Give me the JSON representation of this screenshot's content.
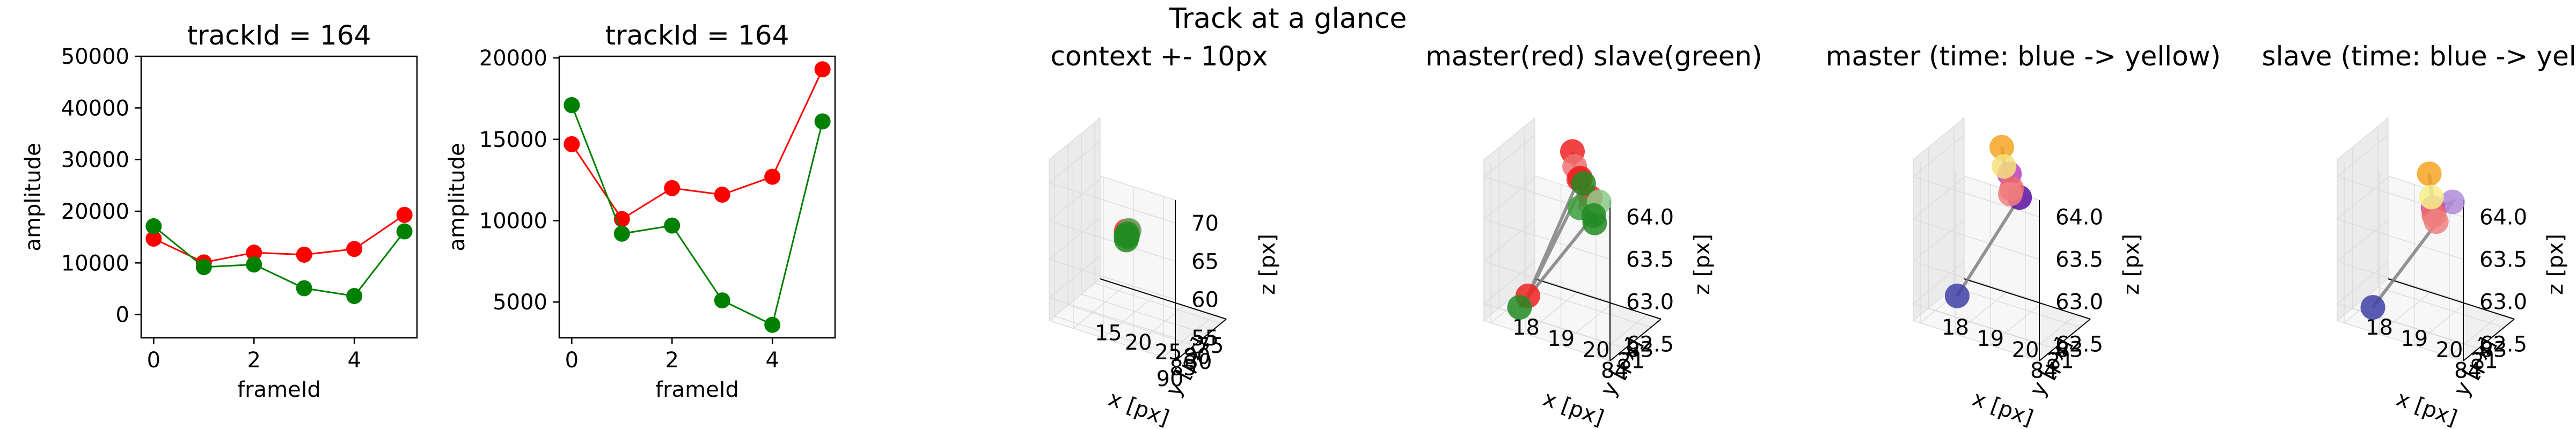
{
  "figure": {
    "suptitle": "Track at a glance"
  },
  "chart_data": [
    {
      "type": "line",
      "title": "trackId = 164",
      "xlabel": "frameId",
      "ylabel": "amplitude",
      "x": [
        0,
        1,
        2,
        3,
        4,
        5
      ],
      "xticks": [
        0,
        2,
        4
      ],
      "yticks": [
        0,
        10000,
        20000,
        30000,
        40000,
        50000
      ],
      "xlim": [
        -0.25,
        5.25
      ],
      "ylim": [
        -4500,
        50000
      ],
      "series": [
        {
          "color": "#ff0000",
          "values": [
            14700,
            10100,
            12000,
            11600,
            12700,
            19300
          ]
        },
        {
          "color": "#008000",
          "values": [
            17100,
            9200,
            9700,
            5100,
            3600,
            16100
          ]
        }
      ]
    },
    {
      "type": "line",
      "title": "trackId = 164",
      "xlabel": "frameId",
      "ylabel": "amplitude",
      "x": [
        0,
        1,
        2,
        3,
        4,
        5
      ],
      "xticks": [
        0,
        2,
        4
      ],
      "yticks": [
        5000,
        10000,
        15000,
        20000
      ],
      "xlim": [
        -0.25,
        5.25
      ],
      "ylim": [
        2800,
        20100
      ],
      "series": [
        {
          "color": "#ff0000",
          "values": [
            14700,
            10100,
            12000,
            11600,
            12700,
            19300
          ]
        },
        {
          "color": "#008000",
          "values": [
            17100,
            9200,
            9700,
            5100,
            3600,
            16100
          ]
        }
      ]
    },
    {
      "type": "scatter3d",
      "title": "context +- 10px",
      "xlabel": "x [px]",
      "ylabel": "y [px]",
      "zlabel": "z [px]",
      "xlim": [
        73,
        92
      ],
      "ylim": [
        11,
        32
      ],
      "zlim": [
        52,
        73
      ],
      "xticks": [
        75,
        80,
        85,
        90
      ],
      "yticks": [
        15,
        20,
        25,
        30
      ],
      "zticks": [
        55,
        60,
        65,
        70
      ],
      "xtick_labels": [
        "75",
        "80",
        "85",
        "90"
      ],
      "ytick_labels": [
        "15",
        "20",
        "25",
        "30"
      ],
      "ztick_labels": [
        "55",
        "60",
        "65",
        "70"
      ],
      "connect": false,
      "points": [
        {
          "x": 83.4,
          "y": 20.0,
          "z": 63.5,
          "color": "#ff3333"
        },
        {
          "x": 83.6,
          "y": 20.3,
          "z": 63.6,
          "color": "#ff3333"
        },
        {
          "x": 83.8,
          "y": 20.5,
          "z": 63.7,
          "color": "#ff3333"
        },
        {
          "x": 83.7,
          "y": 20.6,
          "z": 63.8,
          "color": "#66aa66"
        },
        {
          "x": 83.5,
          "y": 20.2,
          "z": 63.2,
          "color": "#228b22"
        },
        {
          "x": 83.3,
          "y": 19.9,
          "z": 62.8,
          "color": "#228b22"
        },
        {
          "x": 83.6,
          "y": 20.1,
          "z": 62.4,
          "color": "#228b22"
        },
        {
          "x": 83.9,
          "y": 20.4,
          "z": 63.0,
          "color": "#228b22"
        }
      ]
    },
    {
      "type": "scatter3d",
      "title": "master(red) slave(green)",
      "xlabel": "x [px]",
      "ylabel": "y [px]",
      "zlabel": "z [px]",
      "xlim": [
        82.6,
        84.6
      ],
      "ylim": [
        17.8,
        21.4
      ],
      "zlim": [
        62.3,
        64.2
      ],
      "xticks": [
        83,
        84
      ],
      "yticks": [
        18,
        19,
        20,
        21
      ],
      "zticks": [
        62.5,
        63.0,
        63.5,
        64.0
      ],
      "xtick_labels": [
        "83",
        "84"
      ],
      "ytick_labels": [
        "18",
        "19",
        "20",
        "21"
      ],
      "ztick_labels": [
        "62.5",
        "63.0",
        "63.5",
        "64.0"
      ],
      "connect": true,
      "points": [
        {
          "x": 83.05,
          "y": 19.2,
          "z": 64.1,
          "color": "#ee2222"
        },
        {
          "x": 83.1,
          "y": 19.3,
          "z": 63.95,
          "color": "#f07070"
        },
        {
          "x": 83.15,
          "y": 19.5,
          "z": 63.85,
          "color": "#ee2222"
        },
        {
          "x": 84.0,
          "y": 20.4,
          "z": 63.95,
          "color": "#ee2222"
        },
        {
          "x": 83.35,
          "y": 19.6,
          "z": 63.9,
          "color": "#ee2222"
        },
        {
          "x": 83.7,
          "y": 18.4,
          "z": 62.45,
          "color": "#ee2222"
        },
        {
          "x": 83.3,
          "y": 19.7,
          "z": 63.85,
          "color": "#228b22"
        },
        {
          "x": 83.45,
          "y": 19.7,
          "z": 63.6,
          "color": "#3c9e3c"
        },
        {
          "x": 84.1,
          "y": 20.6,
          "z": 63.7,
          "color": "#228b22"
        },
        {
          "x": 84.2,
          "y": 20.8,
          "z": 64.0,
          "color": "#88cc88"
        },
        {
          "x": 84.0,
          "y": 20.5,
          "z": 63.75,
          "color": "#228b22"
        },
        {
          "x": 83.75,
          "y": 18.2,
          "z": 62.3,
          "color": "#228b22"
        }
      ]
    },
    {
      "type": "scatter3d",
      "title": "master (time: blue -> yellow)",
      "xlabel": "x [px]",
      "ylabel": "y [px]",
      "zlabel": "z [px]",
      "xlim": [
        82.6,
        84.6
      ],
      "ylim": [
        17.8,
        21.4
      ],
      "zlim": [
        62.3,
        64.2
      ],
      "xticks": [
        83,
        84
      ],
      "yticks": [
        18,
        19,
        20,
        21
      ],
      "zticks": [
        62.5,
        63.0,
        63.5,
        64.0
      ],
      "xtick_labels": [
        "83",
        "84"
      ],
      "ytick_labels": [
        "18",
        "19",
        "20",
        "21"
      ],
      "ztick_labels": [
        "62.5",
        "63.0",
        "63.5",
        "64.0"
      ],
      "connect": true,
      "points": [
        {
          "x": 83.7,
          "y": 18.4,
          "z": 62.45,
          "color": "#3f3fa6"
        },
        {
          "x": 84.0,
          "y": 20.4,
          "z": 63.95,
          "color": "#5b0fa0"
        },
        {
          "x": 83.3,
          "y": 19.6,
          "z": 63.95,
          "color": "#bb3fbb"
        },
        {
          "x": 83.35,
          "y": 19.7,
          "z": 63.8,
          "color": "#ee6a6a"
        },
        {
          "x": 83.4,
          "y": 19.7,
          "z": 63.75,
          "color": "#f08080"
        },
        {
          "x": 83.05,
          "y": 19.2,
          "z": 64.15,
          "color": "#f5a623"
        },
        {
          "x": 83.1,
          "y": 19.3,
          "z": 63.95,
          "color": "#f6e27a"
        }
      ]
    },
    {
      "type": "scatter3d",
      "title": "slave (time: blue -> yellow)",
      "xlabel": "x [px]",
      "ylabel": "y [px]",
      "zlabel": "z [px]",
      "xlim": [
        82.6,
        84.6
      ],
      "ylim": [
        17.8,
        21.4
      ],
      "zlim": [
        62.3,
        64.2
      ],
      "xticks": [
        83,
        84
      ],
      "yticks": [
        18,
        19,
        20,
        21
      ],
      "zticks": [
        62.5,
        63.0,
        63.5,
        64.0
      ],
      "xtick_labels": [
        "83",
        "84"
      ],
      "ytick_labels": [
        "18",
        "19",
        "20",
        "21"
      ],
      "ztick_labels": [
        "62.5",
        "63.0",
        "63.5",
        "64.0"
      ],
      "connect": true,
      "points": [
        {
          "x": 83.75,
          "y": 18.2,
          "z": 62.3,
          "color": "#3f3fa6"
        },
        {
          "x": 84.2,
          "y": 20.8,
          "z": 64.0,
          "color": "#b08ad8"
        },
        {
          "x": 83.45,
          "y": 19.7,
          "z": 63.6,
          "color": "#cc4fa8"
        },
        {
          "x": 83.55,
          "y": 19.8,
          "z": 63.55,
          "color": "#ee6a6a"
        },
        {
          "x": 83.6,
          "y": 19.9,
          "z": 63.5,
          "color": "#f08080"
        },
        {
          "x": 83.05,
          "y": 19.3,
          "z": 63.85,
          "color": "#f5a623"
        },
        {
          "x": 83.1,
          "y": 19.4,
          "z": 63.6,
          "color": "#f6f08a"
        }
      ]
    }
  ]
}
